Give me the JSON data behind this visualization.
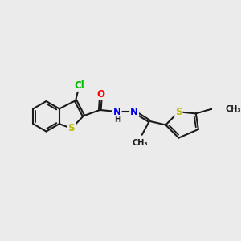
{
  "bg_color": "#ebebeb",
  "bond_color": "#1a1a1a",
  "bond_width": 1.5,
  "atom_colors": {
    "Cl": "#00bb00",
    "S": "#bbbb00",
    "O": "#ff0000",
    "N": "#0000ee",
    "H": "#1a1a1a",
    "C": "#1a1a1a"
  },
  "font_size": 8.5
}
